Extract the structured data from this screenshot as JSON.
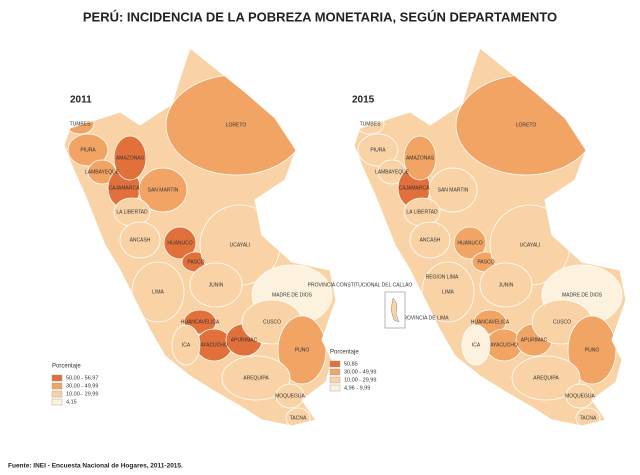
{
  "title": "PERÚ: INCIDENCIA DE LA POBREZA MONETARIA,  SEGÚN DEPARTAMENTO",
  "maps": [
    {
      "year": "2011",
      "legend": {
        "title": "Porcentaje",
        "items": [
          {
            "label": "50,00 - 56,97",
            "color": "#e2703a"
          },
          {
            "label": "30,00 - 49,99",
            "color": "#f2a465"
          },
          {
            "label": "10,00 - 29,99",
            "color": "#f9d3a6"
          },
          {
            "label": "4,15",
            "color": "#fdf2de"
          }
        ]
      },
      "departments": [
        {
          "name": "TUMBES",
          "class": 1
        },
        {
          "name": "PIURA",
          "class": 1
        },
        {
          "name": "LAMBAYEQUE",
          "class": 1
        },
        {
          "name": "CAJAMARCA",
          "class": 0
        },
        {
          "name": "AMAZONAS",
          "class": 0
        },
        {
          "name": "SAN MARTIN",
          "class": 1
        },
        {
          "name": "LORETO",
          "class": 1
        },
        {
          "name": "LA LIBERTAD",
          "class": 2
        },
        {
          "name": "ANCASH",
          "class": 2
        },
        {
          "name": "HUANUCO",
          "class": 0
        },
        {
          "name": "PASCO",
          "class": 0
        },
        {
          "name": "UCAYALI",
          "class": 2
        },
        {
          "name": "LIMA",
          "class": 2
        },
        {
          "name": "JUNIN",
          "class": 2
        },
        {
          "name": "MADRE DE DIOS",
          "class": 3
        },
        {
          "name": "HUANCAVELICA",
          "class": 0
        },
        {
          "name": "AYACUCHO",
          "class": 0
        },
        {
          "name": "APURIMAC",
          "class": 0
        },
        {
          "name": "CUSCO",
          "class": 2
        },
        {
          "name": "ICA",
          "class": 2
        },
        {
          "name": "PUNO",
          "class": 1
        },
        {
          "name": "AREQUIPA",
          "class": 2
        },
        {
          "name": "MOQUEGUA",
          "class": 2
        },
        {
          "name": "TACNA",
          "class": 2
        }
      ]
    },
    {
      "year": "2015",
      "legend": {
        "title": "Porcentaje",
        "items": [
          {
            "label": "50,85",
            "color": "#e2703a"
          },
          {
            "label": "30,00 - 49,99",
            "color": "#f2a465"
          },
          {
            "label": "10,00 - 29,99",
            "color": "#f9d3a6"
          },
          {
            "label": "4,96 - 9,99",
            "color": "#fdf2de"
          }
        ]
      },
      "departments": [
        {
          "name": "TUMBES",
          "class": 2
        },
        {
          "name": "PIURA",
          "class": 2
        },
        {
          "name": "LAMBAYEQUE",
          "class": 2
        },
        {
          "name": "CAJAMARCA",
          "class": 0
        },
        {
          "name": "AMAZONAS",
          "class": 1
        },
        {
          "name": "SAN MARTIN",
          "class": 2
        },
        {
          "name": "LORETO",
          "class": 1
        },
        {
          "name": "LA LIBERTAD",
          "class": 2
        },
        {
          "name": "ANCASH",
          "class": 2
        },
        {
          "name": "HUANUCO",
          "class": 1
        },
        {
          "name": "PASCO",
          "class": 1
        },
        {
          "name": "UCAYALI",
          "class": 2
        },
        {
          "name": "LIMA",
          "class": 2
        },
        {
          "name": "JUNIN",
          "class": 2
        },
        {
          "name": "MADRE DE DIOS",
          "class": 3
        },
        {
          "name": "HUANCAVELICA",
          "class": 1
        },
        {
          "name": "AYACUCHO",
          "class": 1
        },
        {
          "name": "APURIMAC",
          "class": 1
        },
        {
          "name": "CUSCO",
          "class": 2
        },
        {
          "name": "ICA",
          "class": 3
        },
        {
          "name": "PUNO",
          "class": 1
        },
        {
          "name": "AREQUIPA",
          "class": 2
        },
        {
          "name": "MOQUEGUA",
          "class": 2
        },
        {
          "name": "TACNA",
          "class": 2
        },
        {
          "name": "REGION LIMA",
          "class": 2
        },
        {
          "name": "PROVINCIA CONSTITUCIONAL DEL CALLAO",
          "class": 2
        },
        {
          "name": "PROVINCIA DE LIMA",
          "class": 2
        }
      ]
    }
  ],
  "source": "Fuente: INEI - Encuesta Nacional de Hogares, 2011-2015."
}
